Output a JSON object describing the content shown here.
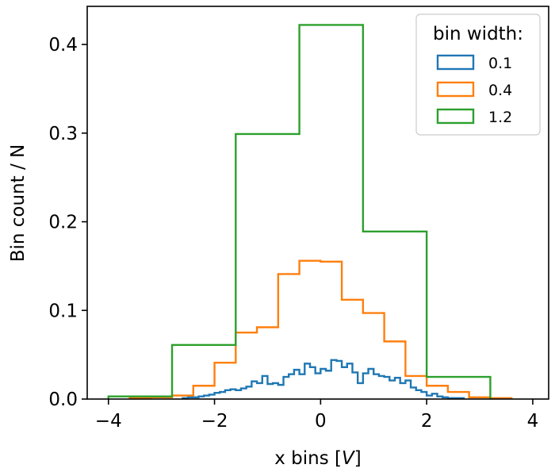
{
  "chart_data": {
    "type": "histogram-step",
    "xlabel_prefix": "x bins [",
    "xlabel_unit": "V",
    "xlabel_suffix": "]",
    "ylabel": "Bin count / N",
    "xlim": [
      -4.4,
      4.3
    ],
    "ylim": [
      0,
      0.443
    ],
    "xticks": [
      -4,
      -2,
      0,
      2,
      4
    ],
    "yticks": [
      0.0,
      0.1,
      0.2,
      0.3,
      0.4
    ],
    "xtick_labels": [
      "−4",
      "−2",
      "0",
      "2",
      "4"
    ],
    "ytick_labels": [
      "0.0",
      "0.1",
      "0.2",
      "0.3",
      "0.4"
    ],
    "legend": {
      "title": "bin width:",
      "placement": "top-right"
    },
    "series": [
      {
        "name": "0.1",
        "color": "#1f77b4",
        "bin_edges": [
          -2.6,
          -2.5,
          -2.4,
          -2.3,
          -2.2,
          -2.1,
          -2.0,
          -1.9,
          -1.8,
          -1.7,
          -1.6,
          -1.5,
          -1.4,
          -1.3,
          -1.2,
          -1.1,
          -1.0,
          -0.9,
          -0.8,
          -0.7,
          -0.6,
          -0.5,
          -0.4,
          -0.3,
          -0.2,
          -0.1,
          0.0,
          0.1,
          0.2,
          0.3,
          0.4,
          0.5,
          0.6,
          0.7,
          0.8,
          0.9,
          1.0,
          1.1,
          1.2,
          1.3,
          1.4,
          1.5,
          1.6,
          1.7,
          1.8,
          1.9,
          2.0,
          2.1,
          2.2,
          2.3,
          2.4,
          2.5,
          2.6,
          2.7
        ],
        "values": [
          0.001,
          0.002,
          0.002,
          0.003,
          0.004,
          0.005,
          0.007,
          0.008,
          0.01,
          0.011,
          0.01,
          0.012,
          0.014,
          0.02,
          0.018,
          0.026,
          0.017,
          0.018,
          0.016,
          0.025,
          0.028,
          0.033,
          0.028,
          0.04,
          0.036,
          0.029,
          0.034,
          0.032,
          0.044,
          0.043,
          0.036,
          0.04,
          0.03,
          0.018,
          0.029,
          0.034,
          0.028,
          0.026,
          0.025,
          0.021,
          0.024,
          0.018,
          0.021,
          0.013,
          0.01,
          0.008,
          0.004,
          0.006,
          0.003,
          0.002,
          0.001,
          0.001,
          0.001
        ]
      },
      {
        "name": "0.4",
        "color": "#ff7f0e",
        "bin_edges": [
          -3.6,
          -3.2,
          -2.8,
          -2.4,
          -2.0,
          -1.6,
          -1.2,
          -0.8,
          -0.4,
          0.0,
          0.4,
          0.8,
          1.2,
          1.6,
          2.0,
          2.4,
          2.8,
          3.2,
          3.6
        ],
        "values": [
          0.001,
          0.002,
          0.004,
          0.015,
          0.041,
          0.075,
          0.081,
          0.141,
          0.156,
          0.155,
          0.112,
          0.097,
          0.065,
          0.026,
          0.015,
          0.008,
          0.002,
          0.001
        ]
      },
      {
        "name": "1.2",
        "color": "#2ca02c",
        "bin_edges": [
          -4.0,
          -2.8,
          -1.6,
          -0.4,
          0.8,
          2.0,
          3.2
        ],
        "values": [
          0.003,
          0.061,
          0.299,
          0.422,
          0.189,
          0.025
        ]
      }
    ]
  }
}
